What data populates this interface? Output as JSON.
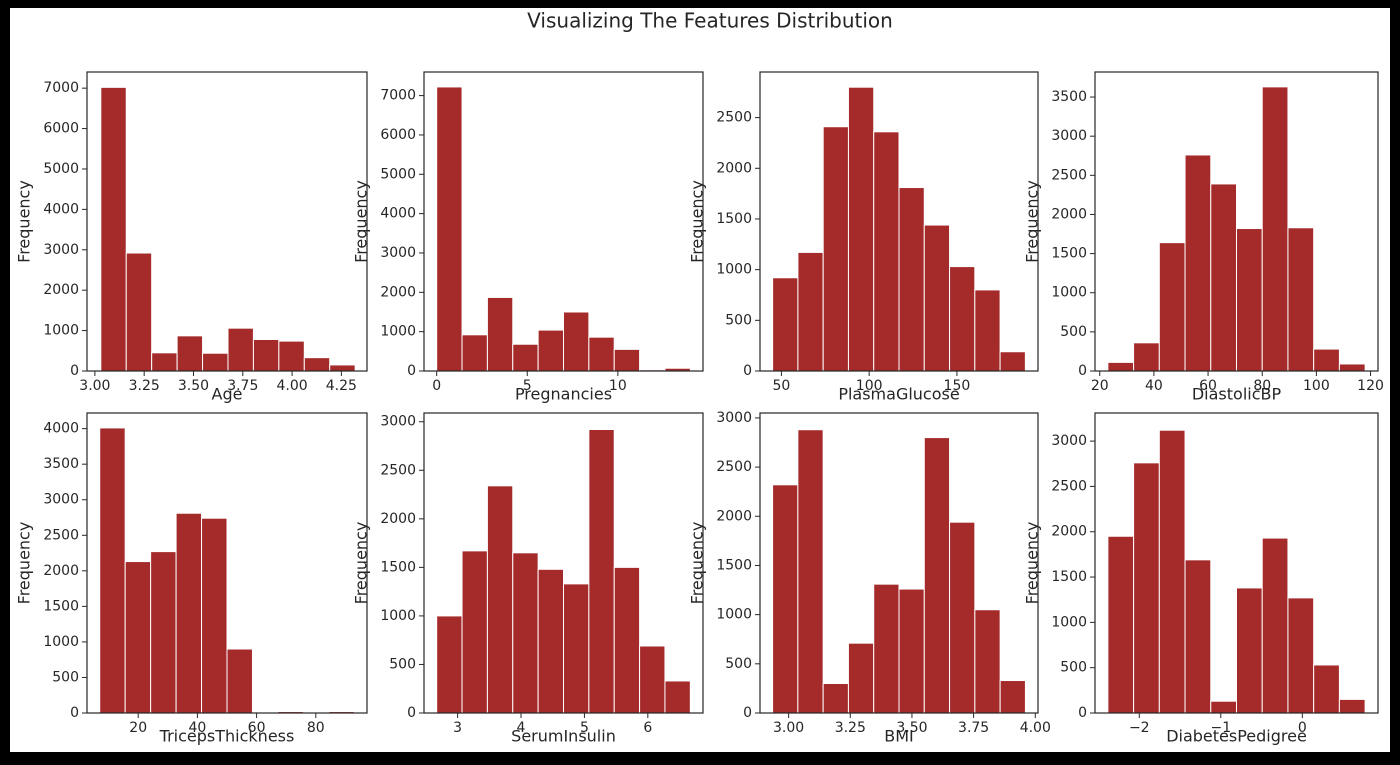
{
  "title": "Visualizing The Features Distribution",
  "chart_data": [
    {
      "type": "histogram",
      "xlabel": "Age",
      "ylabel": "Frequency",
      "color": "#a52a2a",
      "bins": [
        3.03,
        3.159,
        3.288,
        3.417,
        3.546,
        3.675,
        3.804,
        3.933,
        4.062,
        4.191,
        4.32
      ],
      "values": [
        7020,
        2920,
        450,
        870,
        440,
        1060,
        780,
        740,
        330,
        150
      ],
      "xlim": [
        2.96,
        4.38
      ],
      "ylim": [
        0,
        7400
      ],
      "xticks": [
        {
          "value": 3,
          "label": "3.00"
        },
        {
          "value": 3.25,
          "label": "3.25"
        },
        {
          "value": 3.5,
          "label": "3.50"
        },
        {
          "value": 3.75,
          "label": "3.75"
        },
        {
          "value": 4,
          "label": "4.00"
        },
        {
          "value": 4.25,
          "label": "4.25"
        }
      ],
      "yticks": [
        0,
        1000,
        2000,
        3000,
        4000,
        5000,
        6000,
        7000
      ]
    },
    {
      "type": "histogram",
      "xlabel": "Pregnancies",
      "ylabel": "Frequency",
      "color": "#a52a2a",
      "bins": [
        0,
        1.4,
        2.8,
        4.2,
        5.6,
        7,
        8.4,
        9.8,
        11.2,
        12.6,
        14
      ],
      "values": [
        7220,
        920,
        1870,
        680,
        1040,
        1500,
        860,
        550,
        30,
        70
      ],
      "xlim": [
        -0.7,
        14.7
      ],
      "ylim": [
        0,
        7600
      ],
      "xticks": [
        0,
        5,
        10
      ],
      "yticks": [
        0,
        1000,
        2000,
        3000,
        4000,
        5000,
        6000,
        7000
      ]
    },
    {
      "type": "histogram",
      "xlabel": "PlasmaGlucose",
      "ylabel": "Frequency",
      "color": "#a52a2a",
      "bins": [
        45,
        59.4,
        73.8,
        88.2,
        102.6,
        117,
        131.4,
        145.8,
        160.2,
        174.6,
        189
      ],
      "values": [
        920,
        1170,
        2410,
        2800,
        2360,
        1810,
        1440,
        1030,
        800,
        190
      ],
      "xlim": [
        37.8,
        196.2
      ],
      "ylim": [
        0,
        2950
      ],
      "xticks": [
        50,
        100,
        150
      ],
      "yticks": [
        0,
        500,
        1000,
        1500,
        2000,
        2500
      ]
    },
    {
      "type": "histogram",
      "xlabel": "DiastolicBP",
      "ylabel": "Frequency",
      "color": "#a52a2a",
      "bins": [
        23,
        32.5,
        42,
        51.5,
        61,
        70.5,
        80,
        89.5,
        99,
        108.5,
        118
      ],
      "values": [
        110,
        360,
        1640,
        2760,
        2390,
        1820,
        3630,
        1830,
        280,
        90
      ],
      "xlim": [
        18.25,
        122.75
      ],
      "ylim": [
        0,
        3820
      ],
      "xticks": [
        20,
        40,
        60,
        80,
        100,
        120
      ],
      "yticks": [
        0,
        500,
        1000,
        1500,
        2000,
        2500,
        3000,
        3500
      ]
    },
    {
      "type": "histogram",
      "xlabel": "TricepsThickness",
      "ylabel": "Frequency",
      "color": "#a52a2a",
      "bins": [
        7,
        15.6,
        24.2,
        32.8,
        41.4,
        50,
        58.6,
        67.2,
        75.8,
        84.4,
        93
      ],
      "values": [
        4010,
        2130,
        2270,
        2810,
        2740,
        900,
        0,
        20,
        0,
        20
      ],
      "xlim": [
        2.7,
        97.3
      ],
      "ylim": [
        0,
        4220
      ],
      "xticks": [
        20,
        40,
        60,
        80
      ],
      "yticks": [
        0,
        500,
        1000,
        1500,
        2000,
        2500,
        3000,
        3500,
        4000
      ]
    },
    {
      "type": "histogram",
      "xlabel": "SerumInsulin",
      "ylabel": "Frequency",
      "color": "#a52a2a",
      "bins": [
        2.67,
        3.07,
        3.47,
        3.87,
        4.27,
        4.67,
        5.07,
        5.47,
        5.87,
        6.27,
        6.67
      ],
      "values": [
        1000,
        1670,
        2340,
        1650,
        1480,
        1330,
        2920,
        1500,
        690,
        330
      ],
      "xlim": [
        2.47,
        6.87
      ],
      "ylim": [
        0,
        3090
      ],
      "xticks": [
        3,
        4,
        5,
        6
      ],
      "yticks": [
        0,
        500,
        1000,
        1500,
        2000,
        2500,
        3000
      ]
    },
    {
      "type": "histogram",
      "xlabel": "BMI",
      "ylabel": "Frequency",
      "color": "#a52a2a",
      "bins": [
        2.935,
        3.0375,
        3.14,
        3.2425,
        3.345,
        3.4475,
        3.55,
        3.6525,
        3.755,
        3.8575,
        3.96
      ],
      "values": [
        2320,
        2880,
        300,
        710,
        1310,
        1260,
        2800,
        1940,
        1050,
        330
      ],
      "xlim": [
        2.884,
        4.011
      ],
      "ylim": [
        0,
        3050
      ],
      "xticks": [
        {
          "value": 3,
          "label": "3.00"
        },
        {
          "value": 3.25,
          "label": "3.25"
        },
        {
          "value": 3.5,
          "label": "3.50"
        },
        {
          "value": 3.75,
          "label": "3.75"
        },
        {
          "value": 4,
          "label": "4.00"
        }
      ],
      "yticks": [
        0,
        500,
        1000,
        1500,
        2000,
        2500,
        3000
      ]
    },
    {
      "type": "histogram",
      "xlabel": "DiabetesPedigree",
      "ylabel": "Frequency",
      "color": "#a52a2a",
      "bins": [
        -2.385,
        -2.0695,
        -1.754,
        -1.4385,
        -1.123,
        -0.8075,
        -0.492,
        -0.1765,
        0.139,
        0.4545,
        0.77
      ],
      "values": [
        1950,
        2760,
        3120,
        1690,
        130,
        1380,
        1930,
        1270,
        530,
        150
      ],
      "xlim": [
        -2.543,
        0.928
      ],
      "ylim": [
        0,
        3310
      ],
      "xticks": [
        {
          "value": -2,
          "label": "−2"
        },
        {
          "value": -1,
          "label": "−1"
        },
        0
      ],
      "yticks": [
        0,
        500,
        1000,
        1500,
        2000,
        2500,
        3000
      ]
    }
  ]
}
